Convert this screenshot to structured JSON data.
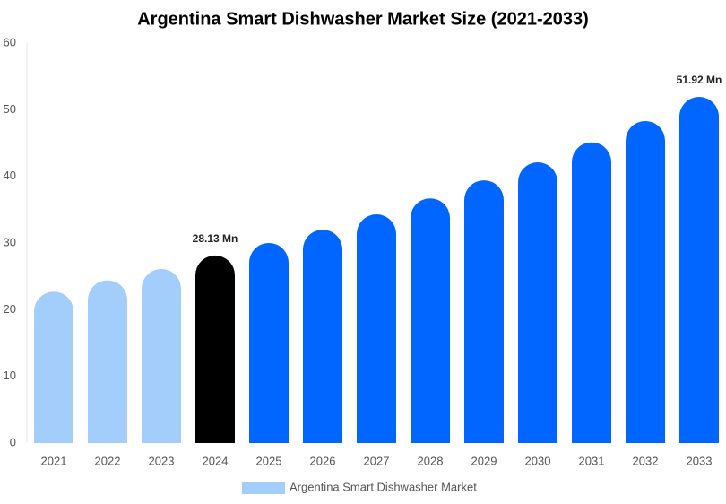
{
  "chart_data": {
    "type": "bar",
    "title": "Argentina Smart Dishwasher Market Size (2021-2033)",
    "categories": [
      "2021",
      "2022",
      "2023",
      "2024",
      "2025",
      "2026",
      "2027",
      "2028",
      "2029",
      "2030",
      "2031",
      "2032",
      "2033"
    ],
    "series": [
      {
        "name": "Argentina Smart Dishwasher Market",
        "color": "#a3cdfa",
        "values": [
          22.7,
          24.4,
          26.1,
          28.13,
          30.0,
          32.0,
          34.3,
          36.7,
          39.4,
          42.1,
          45.1,
          48.3,
          51.92
        ],
        "colors": [
          "#a3cdfa",
          "#a3cdfa",
          "#a3cdfa",
          "#000000",
          "#0066ff",
          "#0066ff",
          "#0066ff",
          "#0066ff",
          "#0066ff",
          "#0066ff",
          "#0066ff",
          "#0066ff",
          "#0066ff"
        ],
        "value_labels": [
          null,
          null,
          null,
          "28.13 Mn",
          null,
          null,
          null,
          null,
          null,
          null,
          null,
          null,
          "51.92 Mn"
        ]
      }
    ],
    "ylim": [
      0,
      60
    ],
    "yticks": [
      0,
      10,
      20,
      30,
      40,
      50,
      60
    ],
    "grid": false
  }
}
